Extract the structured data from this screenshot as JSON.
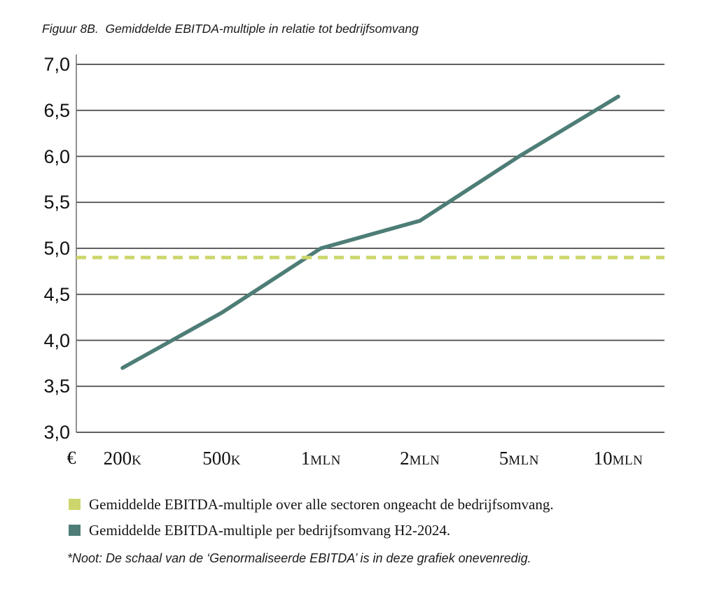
{
  "title": "Figuur 8B.  Gemiddelde EBITDA-multiple in relatie tot bedrijfsomvang",
  "chart_data": {
    "type": "line",
    "title": "Figuur 8B. Gemiddelde EBITDA-multiple in relatie tot bedrijfsomvang",
    "categories": [
      "200K",
      "500K",
      "1MLN",
      "2MLN",
      "5MLN",
      "10MLN"
    ],
    "x_prefix": "€",
    "series": [
      {
        "name": "Gemiddelde EBITDA-multiple per bedrijfsomvang H2-2024.",
        "color": "#4d7d76",
        "line_style": "solid",
        "values": [
          3.7,
          4.3,
          5.0,
          5.3,
          6.0,
          6.65
        ]
      },
      {
        "name": "Gemiddelde EBITDA-multiple over alle sectoren ongeacht de bedrijfsomvang.",
        "color": "#cdd66c",
        "line_style": "dashed",
        "values": [
          4.9,
          4.9,
          4.9,
          4.9,
          4.9,
          4.9
        ]
      }
    ],
    "ylim": [
      3.0,
      7.0
    ],
    "ytick_step": 0.5,
    "y_tick_labels": [
      "7,0",
      "6,5",
      "6,0",
      "5,5",
      "5,0",
      "4,5",
      "4,0",
      "3,5",
      "3,0"
    ],
    "grid": "horizontal",
    "grid_color": "#4a4a4a",
    "axis_color": "#6e6e6e",
    "legend_position": "bottom-left"
  },
  "legend": {
    "items": [
      {
        "label": "Gemiddelde EBITDA-multiple over alle sectoren ongeacht de bedrijfsomvang.",
        "color": "#cdd66c"
      },
      {
        "label": "Gemiddelde EBITDA-multiple per bedrijfsomvang H2-2024.",
        "color": "#4d7d76"
      }
    ]
  },
  "footnote": "*Noot: De schaal van de ‘Genormaliseerde EBITDA’ is in deze grafiek onevenredig."
}
